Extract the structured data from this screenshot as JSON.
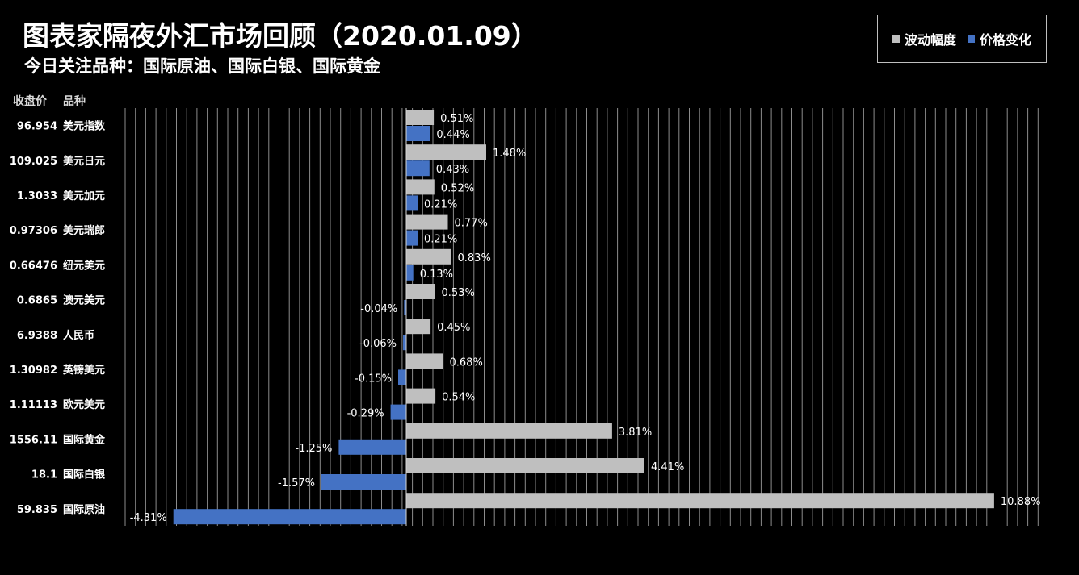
{
  "header": {
    "title": "图表家隔夜外汇市场回顾（2020.01.09）",
    "subtitle": "今日关注品种：国际原油、国际白银、国际黄金"
  },
  "table_headers": {
    "close": "收盘价",
    "name": "品种"
  },
  "legend": [
    {
      "label": "波动幅度",
      "color": "#bfbfbf"
    },
    {
      "label": "价格变化",
      "color": "#4472c4"
    }
  ],
  "chart_data": {
    "type": "bar",
    "orientation": "horizontal",
    "title": "",
    "xlabel": "",
    "ylabel": "",
    "categories": [
      "美元指数",
      "美元日元",
      "美元加元",
      "美元瑞郎",
      "纽元美元",
      "澳元美元",
      "人民币",
      "英镑美元",
      "欧元美元",
      "国际黄金",
      "国际白银",
      "国际原油"
    ],
    "close_prices": [
      "96.954",
      "109.025",
      "1.3033",
      "0.97306",
      "0.66476",
      "0.6865",
      "6.9388",
      "1.30982",
      "1.11113",
      "1556.11",
      "18.1",
      "59.835"
    ],
    "series": [
      {
        "name": "波动幅度",
        "color": "#bfbfbf",
        "values": [
          0.51,
          1.48,
          0.52,
          0.77,
          0.83,
          0.53,
          0.45,
          0.68,
          0.54,
          3.81,
          4.41,
          10.88
        ],
        "labels": [
          "0.51%",
          "1.48%",
          "0.52%",
          "0.77%",
          "0.83%",
          "0.53%",
          "0.45%",
          "0.68%",
          "0.54%",
          "3.81%",
          "4.41%",
          "10.88%"
        ]
      },
      {
        "name": "价格变化",
        "color": "#4472c4",
        "values": [
          0.44,
          0.43,
          0.21,
          0.21,
          0.13,
          -0.04,
          -0.06,
          -0.15,
          -0.29,
          -1.25,
          -1.57,
          -4.31
        ],
        "labels": [
          "0.44%",
          "0.43%",
          "0.21%",
          "0.21%",
          "0.13%",
          "-0.04%",
          "-0.06%",
          "-0.15%",
          "-0.29%",
          "-1.25%",
          "-1.57%",
          "-4.31%"
        ]
      }
    ],
    "xlim": [
      -5.2,
      11.2
    ],
    "grid": true,
    "legend_position": "top-right"
  }
}
